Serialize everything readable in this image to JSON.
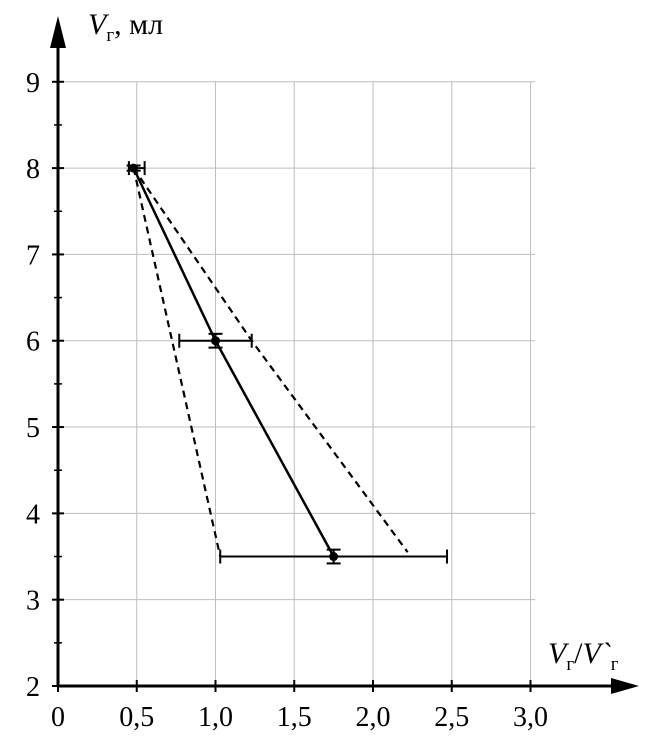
{
  "chart_data": {
    "type": "line",
    "y_axis": {
      "label_main": "V",
      "label_sub": "г",
      "label_unit": ", мл",
      "range": [
        2,
        9.6
      ],
      "ticks": [
        2,
        3,
        4,
        5,
        6,
        7,
        8,
        9
      ],
      "tick_labels": [
        "2",
        "3",
        "4",
        "5",
        "6",
        "7",
        "8",
        "9"
      ],
      "minor_ticks": [
        2.5,
        3.5,
        4.5,
        5.5,
        6.5,
        7.5,
        8.5
      ]
    },
    "x_axis": {
      "label_main1": "V",
      "label_sub1": "г",
      "label_slash": "/",
      "label_main2": "V`",
      "label_sub2": "г",
      "range": [
        0,
        3.6
      ],
      "ticks": [
        0,
        0.5,
        1.0,
        1.5,
        2.0,
        2.5,
        3.0
      ],
      "tick_labels": [
        "0",
        "0,5",
        "1,0",
        "1,5",
        "2,0",
        "2,5",
        "3,0"
      ]
    },
    "grid": true,
    "series": [
      {
        "style": "solid",
        "points": [
          {
            "x": 0.48,
            "y": 8.0,
            "xerr": [
              0.45,
              0.55
            ],
            "yerr": [
              7.97,
              8.03
            ]
          },
          {
            "x": 1.0,
            "y": 6.0,
            "xerr": [
              0.77,
              1.23
            ],
            "yerr": [
              5.92,
              6.08
            ]
          },
          {
            "x": 1.75,
            "y": 3.5,
            "xerr": [
              1.03,
              2.47
            ],
            "yerr": [
              3.42,
              3.58
            ]
          }
        ]
      },
      {
        "style": "dashed",
        "points": [
          {
            "x": 0.48,
            "y": 8.0
          },
          {
            "x": 1.03,
            "y": 3.5
          }
        ]
      },
      {
        "style": "dashed",
        "points": [
          {
            "x": 0.48,
            "y": 8.0
          },
          {
            "x": 1.23,
            "y": 6.0
          },
          {
            "x": 2.22,
            "y": 3.55
          }
        ]
      }
    ]
  }
}
